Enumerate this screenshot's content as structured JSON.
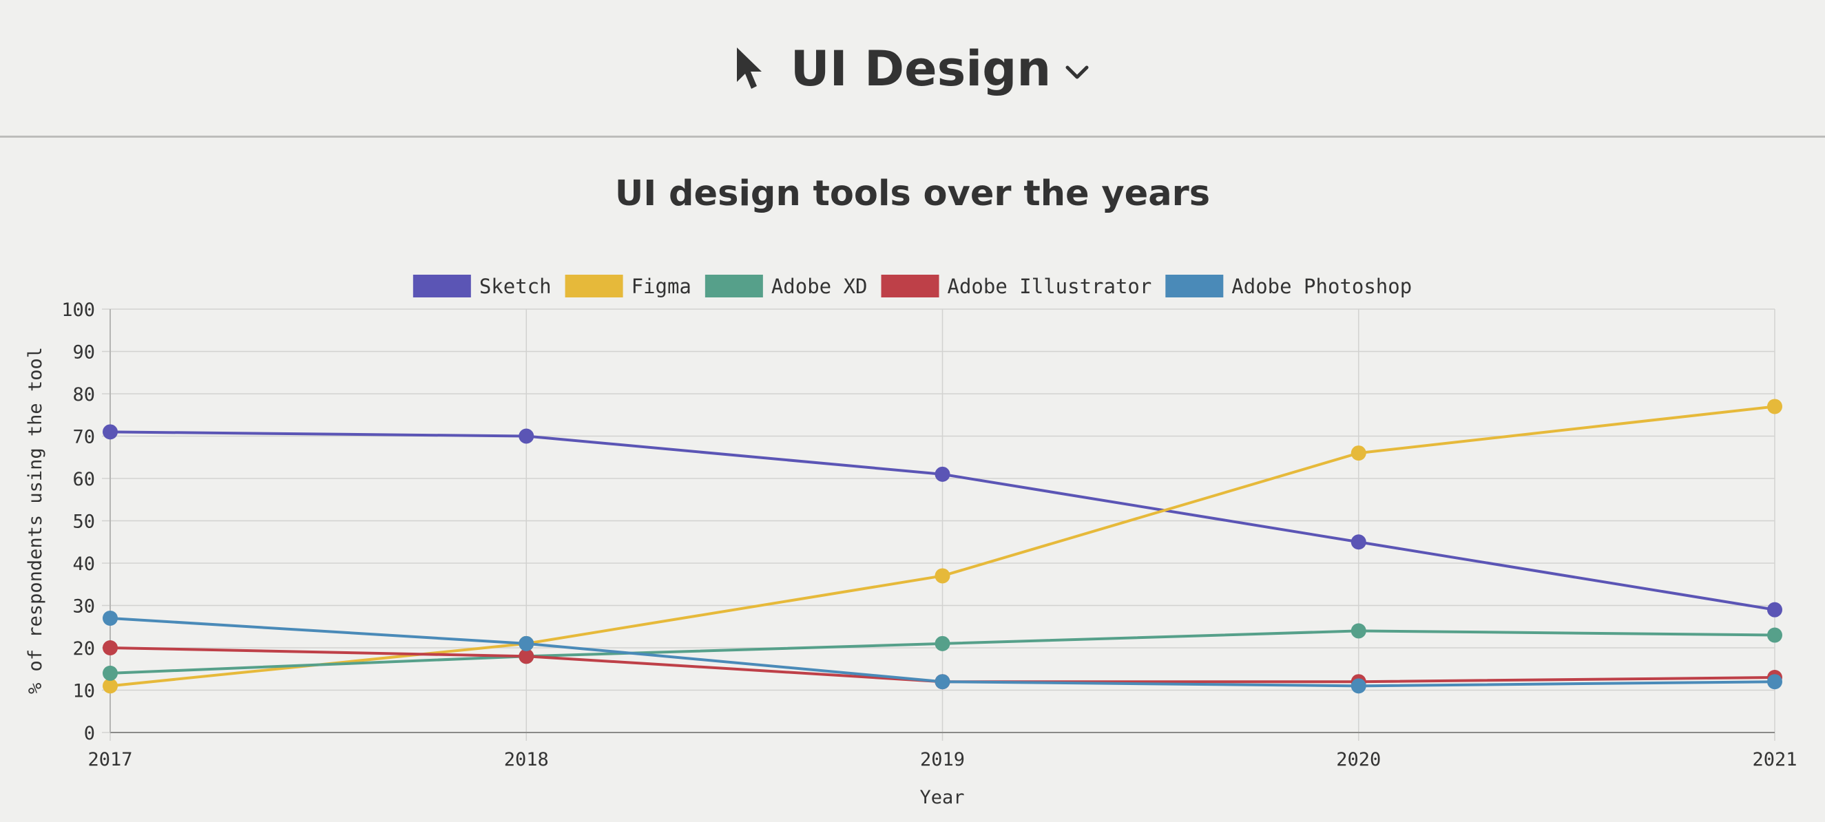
{
  "header": {
    "title": "UI Design",
    "cursor_icon": "cursor-arrow-icon",
    "dropdown_icon": "chevron-down-icon"
  },
  "chart_data": {
    "type": "line",
    "title": "UI design tools over the years",
    "xlabel": "Year",
    "ylabel": "% of respondents using the tool",
    "x": [
      "2017",
      "2018",
      "2019",
      "2020",
      "2021"
    ],
    "ylim": [
      0,
      100
    ],
    "yticks": [
      0,
      10,
      20,
      30,
      40,
      50,
      60,
      70,
      80,
      90,
      100
    ],
    "grid": true,
    "legend_position": "top",
    "series": [
      {
        "name": "Sketch",
        "color": "#5b55b5",
        "values": [
          71,
          70,
          61,
          45,
          29
        ]
      },
      {
        "name": "Figma",
        "color": "#e6b93a",
        "values": [
          11,
          21,
          37,
          66,
          77
        ]
      },
      {
        "name": "Adobe XD",
        "color": "#56a08a",
        "values": [
          14,
          18,
          21,
          24,
          23
        ]
      },
      {
        "name": "Adobe Illustrator",
        "color": "#be4048",
        "values": [
          20,
          18,
          12,
          12,
          13
        ]
      },
      {
        "name": "Adobe Photoshop",
        "color": "#4a8ab8",
        "values": [
          27,
          21,
          12,
          11,
          12
        ]
      }
    ]
  }
}
